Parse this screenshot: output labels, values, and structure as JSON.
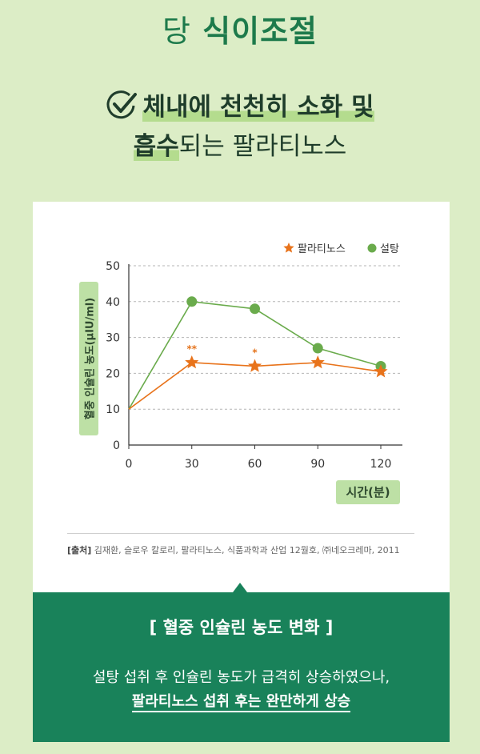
{
  "title": {
    "pre": "당",
    "main": "식이조절"
  },
  "headline": {
    "line1": "체내에 천천히 소화 및",
    "line2_bold": "흡수",
    "line2_rest": "되는 팔라티노스"
  },
  "chart_data": {
    "type": "line",
    "x": [
      0,
      30,
      60,
      90,
      120
    ],
    "xlim": [
      0,
      130
    ],
    "ylim": [
      0,
      50
    ],
    "xticks": [
      0,
      30,
      60,
      90,
      120
    ],
    "yticks": [
      0,
      10,
      20,
      30,
      40,
      50
    ],
    "xlabel": "시간(분)",
    "ylabel": "혈중 인슐린 농도(μIU/ml)",
    "grid": true,
    "legend_position": "top-right",
    "series": [
      {
        "name": "팔라티노스",
        "values": [
          10,
          23,
          22,
          23,
          20.5
        ],
        "marker": "star",
        "color": "#e8731b"
      },
      {
        "name": "설탕",
        "values": [
          10,
          40,
          38,
          27,
          22
        ],
        "marker": "circle",
        "color": "#6aab4c"
      }
    ],
    "annotations": [
      {
        "x": 30,
        "text": "**"
      },
      {
        "x": 60,
        "text": "*"
      }
    ]
  },
  "source": {
    "label": "[출처]",
    "text": "김재환, 슬로우 칼로리, 팔라티노스, 식품과학과 산업 12월호, ㈜네오크레마,  2011"
  },
  "box": {
    "subtitle": "[ 혈중 인슐린 농도 변화 ]",
    "line1": "설탕 섭취 후 인슐린 농도가 급격히 상승하였으나,",
    "line2": "팔라티노스 섭취 후는 완만하게 상승"
  },
  "colors": {
    "accent": "#19825a",
    "palatinose": "#e8731b",
    "sugar": "#6aab4c",
    "background": "#dcedc6"
  }
}
